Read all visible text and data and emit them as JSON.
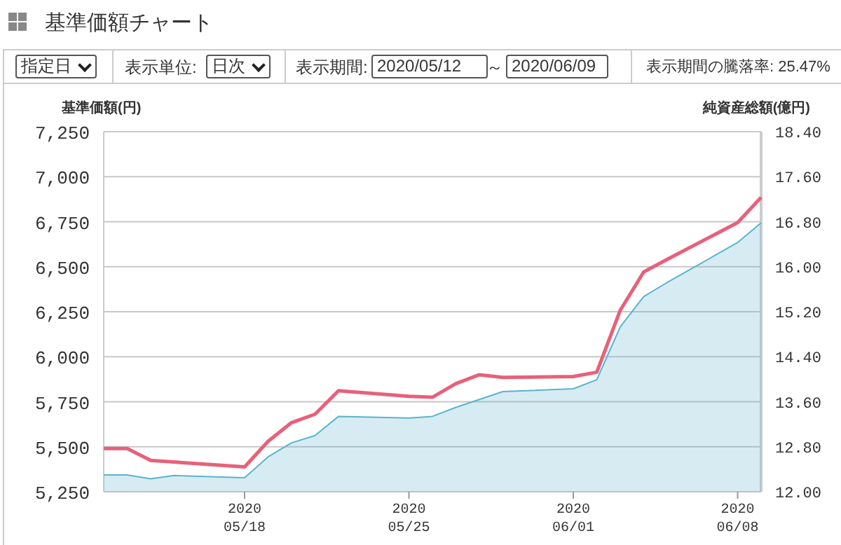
{
  "chart_data": {
    "type": "line",
    "title": "基準価額チャート",
    "annotations": [
      "指定日",
      "表示単位:",
      "日次",
      "表示期間:",
      "2020/05/12",
      "～",
      "2020/06/09",
      "表示期間の騰落率: 25.47%"
    ],
    "ylabel": "基準価額(円)",
    "y2label": "純資産総額(億円)",
    "x": [
      "2020-05-12",
      "2020-05-13",
      "2020-05-14",
      "2020-05-15",
      "2020-05-18",
      "2020-05-19",
      "2020-05-20",
      "2020-05-21",
      "2020-05-22",
      "2020-05-25",
      "2020-05-26",
      "2020-05-27",
      "2020-05-28",
      "2020-05-29",
      "2020-06-01",
      "2020-06-02",
      "2020-06-03",
      "2020-06-04",
      "2020-06-05",
      "2020-06-08",
      "2020-06-09"
    ],
    "series": [
      {
        "type": "area",
        "axis": "y2",
        "color": "#5ab4cc",
        "values": [
          12.3,
          12.3,
          12.23,
          12.29,
          12.25,
          12.62,
          12.87,
          13.0,
          13.34,
          13.31,
          13.34,
          13.5,
          13.64,
          13.78,
          13.83,
          13.99,
          14.93,
          15.47,
          15.72,
          16.43,
          16.78
        ]
      },
      {
        "type": "line",
        "axis": "y",
        "color": "#e8607a",
        "values": [
          5490,
          5490,
          5424,
          5415,
          5388,
          5530,
          5634,
          5681,
          5811,
          5780,
          5775,
          5851,
          5900,
          5885,
          5890,
          5914,
          6258,
          6471,
          6541,
          6745,
          6885
        ]
      }
    ],
    "xlim": [
      "2020-05-12",
      "2020-06-09"
    ],
    "xticks": [
      {
        "value": "2020-05-18",
        "label": "2020 05/18"
      },
      {
        "value": "2020-05-25",
        "label": "2020 05/25"
      },
      {
        "value": "2020-06-01",
        "label": "2020 06/01"
      },
      {
        "value": "2020-06-08",
        "label": "2020 06/08"
      }
    ],
    "ylim": [
      5250,
      7250
    ],
    "yticks": [
      {
        "value": 5250,
        "label": "5,250"
      },
      {
        "value": 5500,
        "label": "5,500"
      },
      {
        "value": 5750,
        "label": "5,750"
      },
      {
        "value": 6000,
        "label": "6,000"
      },
      {
        "value": 6250,
        "label": "6,250"
      },
      {
        "value": 6500,
        "label": "6,500"
      },
      {
        "value": 6750,
        "label": "6,750"
      },
      {
        "value": 7000,
        "label": "7,000"
      },
      {
        "value": 7250,
        "label": "7,250"
      }
    ],
    "y2lim": [
      12,
      18.4
    ],
    "y2ticks": [
      {
        "value": 12,
        "label": "12.00"
      },
      {
        "value": 12.8,
        "label": "12.80"
      },
      {
        "value": 13.6,
        "label": "13.60"
      },
      {
        "value": 14.4,
        "label": "14.40"
      },
      {
        "value": 15.2,
        "label": "15.20"
      },
      {
        "value": 16,
        "label": "16.00"
      },
      {
        "value": 16.8,
        "label": "16.80"
      },
      {
        "value": 17.6,
        "label": "17.60"
      },
      {
        "value": 18.4,
        "label": "18.40"
      }
    ],
    "grid": "y",
    "legend": false,
    "marker": "none",
    "line_style": "solid"
  }
}
